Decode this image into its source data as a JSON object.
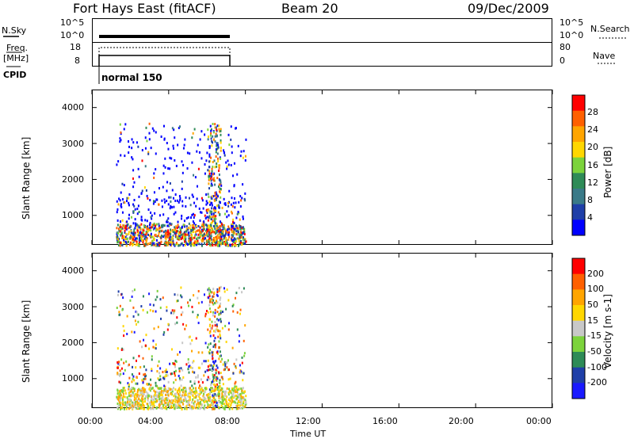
{
  "header": {
    "station": "Fort Hays East (fitACF)",
    "beam": "Beam 20",
    "date": "09/Dec/2009"
  },
  "top_panels": {
    "nsky_label": "N.Sky",
    "nsky_ticks": [
      "10^5",
      "10^0"
    ],
    "nsearch_label": "N.Search",
    "freq_label": "Freq.",
    "freq_unit": "[MHz]",
    "freq_ticks": [
      "18",
      "8"
    ],
    "nave_label": "Nave",
    "nave_ticks": [
      "80",
      "0"
    ],
    "cpid_label": "CPID",
    "cpid_value": "normal 150"
  },
  "colors": {
    "power": [
      "#0000ff",
      "#1f3fa8",
      "#3a7a88",
      "#2e8b57",
      "#7cd33c",
      "#ffd700",
      "#ffa500",
      "#ff6000",
      "#ff0000"
    ],
    "velocity": [
      "#1a1aff",
      "#1f3fa8",
      "#2e8b57",
      "#7cd33c",
      "#c8c8c8",
      "#ffd700",
      "#ffa500",
      "#ff6000",
      "#ff0000"
    ]
  },
  "chart_data": [
    {
      "type": "heatmap",
      "parameter": "power",
      "xlabel": "",
      "ylabel": "Slant Range [km]",
      "y_ticks": [
        "4000",
        "3000",
        "2000",
        "1000"
      ],
      "y_tick_values": [
        4000,
        3000,
        2000,
        1000
      ],
      "ylim": [
        180,
        4500
      ],
      "xlim_hours": [
        0,
        24
      ],
      "colorbar_label": "Power [dB]",
      "colorbar_ticks": [
        "28",
        "24",
        "20",
        "16",
        "12",
        "8",
        "4"
      ],
      "data_extent_hours": [
        1.25,
        8.0
      ]
    },
    {
      "type": "heatmap",
      "parameter": "velocity",
      "xlabel": "Time UT",
      "ylabel": "Slant Range [km]",
      "y_ticks": [
        "4000",
        "3000",
        "2000",
        "1000"
      ],
      "y_tick_values": [
        4000,
        3000,
        2000,
        1000
      ],
      "ylim": [
        180,
        4500
      ],
      "xlim_hours": [
        0,
        24
      ],
      "x_ticks": [
        "00:00",
        "04:00",
        "08:00",
        "12:00",
        "16:00",
        "20:00",
        "00:00"
      ],
      "x_tick_values": [
        0,
        4,
        8,
        12,
        16,
        20,
        24
      ],
      "colorbar_label": "Velocity [m s-1]",
      "colorbar_ticks": [
        "200",
        "100",
        "50",
        "15",
        "-15",
        "-50",
        "-100",
        "-200"
      ],
      "data_extent_hours": [
        1.25,
        8.0
      ]
    }
  ]
}
